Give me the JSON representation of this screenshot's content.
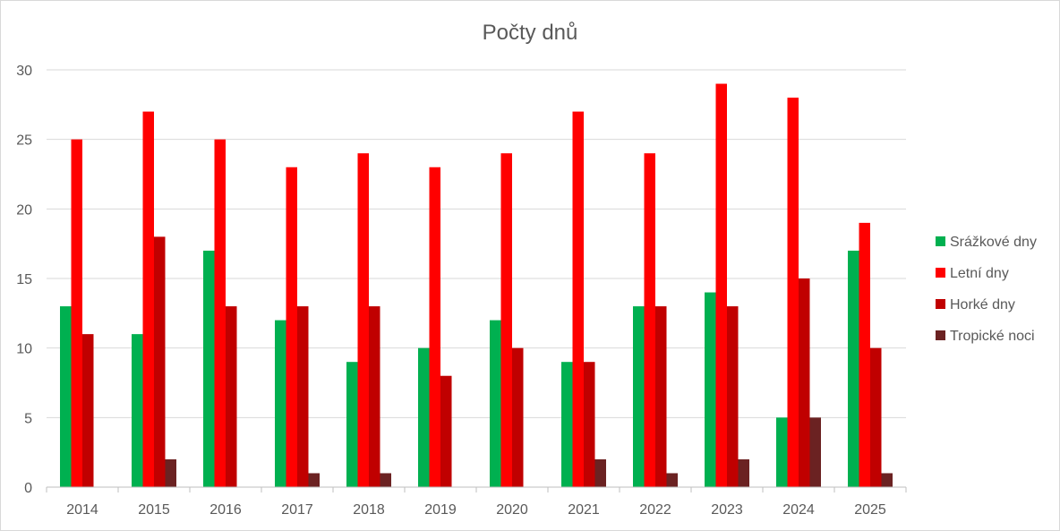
{
  "chart_data": {
    "type": "bar",
    "title": "Počty dnů",
    "xlabel": "",
    "ylabel": "",
    "categories": [
      "2014",
      "2015",
      "2016",
      "2017",
      "2018",
      "2019",
      "2020",
      "2021",
      "2022",
      "2023",
      "2024",
      "2025"
    ],
    "ylim": [
      0,
      30
    ],
    "yticks": [
      0,
      5,
      10,
      15,
      20,
      25,
      30
    ],
    "grid": true,
    "legend_position": "right",
    "series": [
      {
        "name": "Srážkové dny",
        "color": "#00b050",
        "values": [
          13,
          11,
          17,
          12,
          9,
          10,
          12,
          9,
          13,
          14,
          5,
          17
        ]
      },
      {
        "name": "Letní dny",
        "color": "#ff0000",
        "values": [
          25,
          27,
          25,
          23,
          24,
          23,
          24,
          27,
          24,
          29,
          28,
          19
        ]
      },
      {
        "name": "Horké dny",
        "color": "#c00000",
        "values": [
          11,
          18,
          13,
          13,
          13,
          8,
          10,
          9,
          13,
          13,
          15,
          10
        ]
      },
      {
        "name": "Tropické noci",
        "color": "#6b2222",
        "values": [
          0,
          2,
          0,
          1,
          1,
          0,
          0,
          2,
          1,
          2,
          5,
          1
        ]
      }
    ]
  }
}
